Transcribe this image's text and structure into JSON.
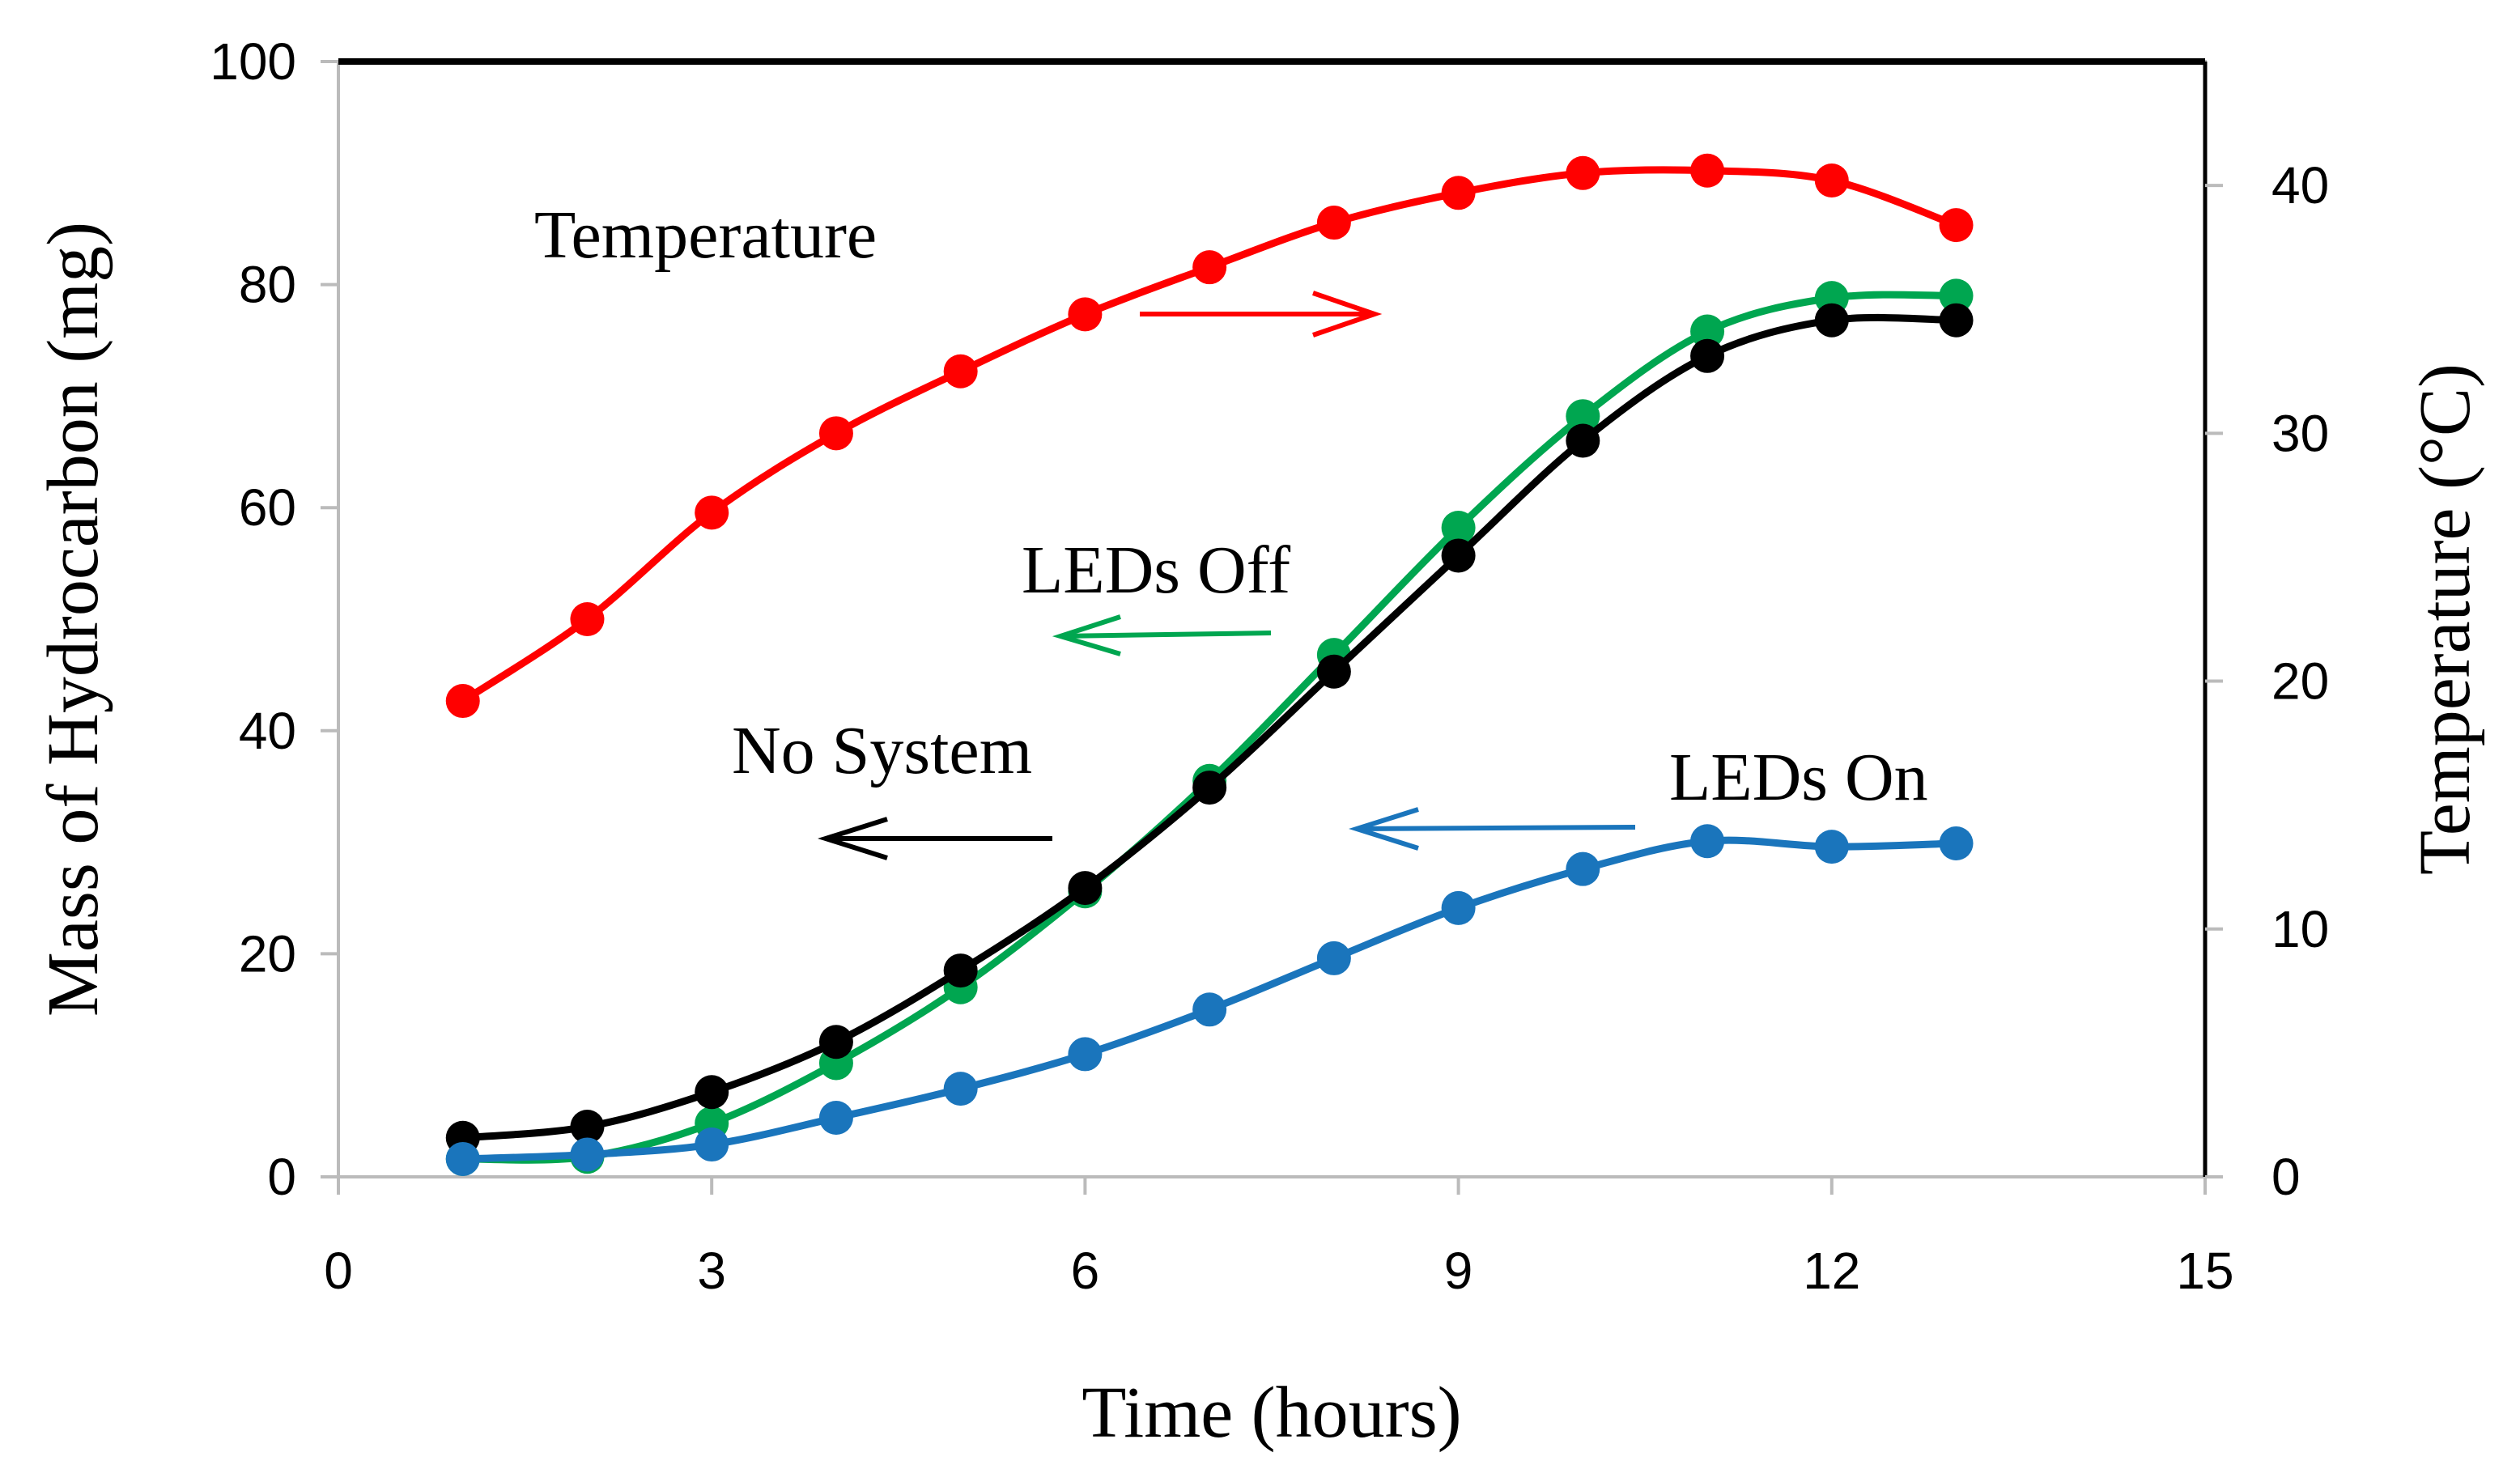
{
  "chart_data": {
    "type": "line",
    "title": "",
    "xlabel": "Time (hours)",
    "ylabel": "Mass of Hydrocarbon (mg)",
    "y2label": "Temperature (°C)",
    "xlim": [
      0,
      15
    ],
    "ylim": [
      0,
      100
    ],
    "y2lim": [
      0,
      45
    ],
    "xticks": [
      "0",
      "3",
      "6",
      "9",
      "12",
      "15"
    ],
    "yticks": [
      "0",
      "20",
      "40",
      "60",
      "80",
      "100"
    ],
    "y2ticks": [
      "0",
      "10",
      "20",
      "30",
      "40"
    ],
    "grid": false,
    "series": [
      {
        "name": "Temperature",
        "axis": "right",
        "color": "#ff0000",
        "x": [
          1,
          2,
          3,
          4,
          5,
          6,
          7,
          8,
          9,
          10,
          11,
          12,
          13
        ],
        "values": [
          19.2,
          22.5,
          26.8,
          30.0,
          32.5,
          34.8,
          36.7,
          38.5,
          39.7,
          40.5,
          40.6,
          40.2,
          38.4
        ]
      },
      {
        "name": "LEDs Off",
        "axis": "left",
        "color": "#00a650",
        "x": [
          1,
          2,
          3,
          4,
          5,
          6,
          7,
          8,
          9,
          10,
          11,
          12,
          13
        ],
        "values": [
          1.6,
          1.8,
          4.8,
          10.2,
          17.0,
          25.6,
          35.5,
          46.8,
          58.2,
          68.2,
          75.8,
          78.8,
          79.0
        ]
      },
      {
        "name": "No System",
        "axis": "left",
        "color": "#000000",
        "x": [
          1,
          2,
          3,
          4,
          5,
          6,
          7,
          8,
          9,
          10,
          11,
          12,
          13
        ],
        "values": [
          3.5,
          4.5,
          7.6,
          12.1,
          18.5,
          25.9,
          34.9,
          45.3,
          55.7,
          66.0,
          73.6,
          76.8,
          76.8
        ]
      },
      {
        "name": "LEDs On",
        "axis": "left",
        "color": "#1a75bc",
        "x": [
          1,
          2,
          3,
          4,
          5,
          6,
          7,
          8,
          9,
          10,
          11,
          12,
          13
        ],
        "values": [
          1.6,
          2.0,
          2.9,
          5.3,
          7.9,
          11.0,
          15.0,
          19.6,
          24.1,
          27.6,
          30.1,
          29.6,
          29.9
        ]
      }
    ],
    "annotations": [
      {
        "text": "Temperature",
        "color": "#ff0000",
        "arrow": "right"
      },
      {
        "text": "LEDs Off",
        "color": "#00a650",
        "arrow": "left"
      },
      {
        "text": "No System",
        "color": "#000000",
        "arrow": "left"
      },
      {
        "text": "LEDs On",
        "color": "#1a75bc",
        "arrow": "left"
      }
    ]
  }
}
